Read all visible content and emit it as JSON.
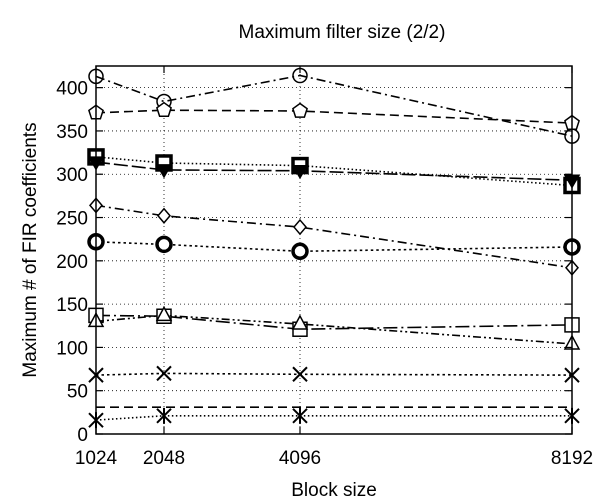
{
  "chart_data": {
    "type": "line",
    "title": "Maximum filter size (2/2)",
    "xlabel": "Block size",
    "ylabel": "Maximum # of FIR coefficients",
    "x": [
      1024,
      2048,
      4096,
      8192
    ],
    "x_ticks": [
      1024,
      2048,
      4096,
      8192
    ],
    "y_ticks": [
      0,
      50,
      100,
      150,
      200,
      250,
      300,
      350,
      400
    ],
    "xlim": [
      1024,
      8192
    ],
    "ylim": [
      0,
      425
    ],
    "grid": true,
    "legend": "none",
    "series": [
      {
        "marker": "circle",
        "line": "dashdot",
        "values": [
          413,
          384,
          414,
          344
        ]
      },
      {
        "marker": "pentagon",
        "line": "dashed",
        "values": [
          371,
          374,
          373,
          359
        ]
      },
      {
        "marker": "filled-square",
        "line": "dotted",
        "values": [
          320,
          313,
          310,
          287
        ]
      },
      {
        "marker": "filled-triangle-down",
        "line": "longdash",
        "values": [
          314,
          305,
          304,
          293
        ]
      },
      {
        "marker": "diamond",
        "line": "dashdot",
        "values": [
          264,
          252,
          239,
          192
        ]
      },
      {
        "marker": "filled-circle",
        "line": "densedotted",
        "values": [
          222,
          219,
          211,
          216
        ]
      },
      {
        "marker": "square",
        "line": "longdashdot",
        "values": [
          137,
          136,
          121,
          126
        ]
      },
      {
        "marker": "triangle",
        "line": "dashdotdot",
        "values": [
          130,
          137,
          127,
          104
        ]
      },
      {
        "marker": "x",
        "line": "densedotted",
        "values": [
          68,
          70,
          69,
          68
        ]
      },
      {
        "marker": "none",
        "line": "dashed",
        "values": [
          31,
          31,
          31,
          31
        ]
      },
      {
        "marker": "asterisk",
        "line": "dotted",
        "values": [
          16,
          21,
          21,
          21
        ]
      }
    ]
  }
}
